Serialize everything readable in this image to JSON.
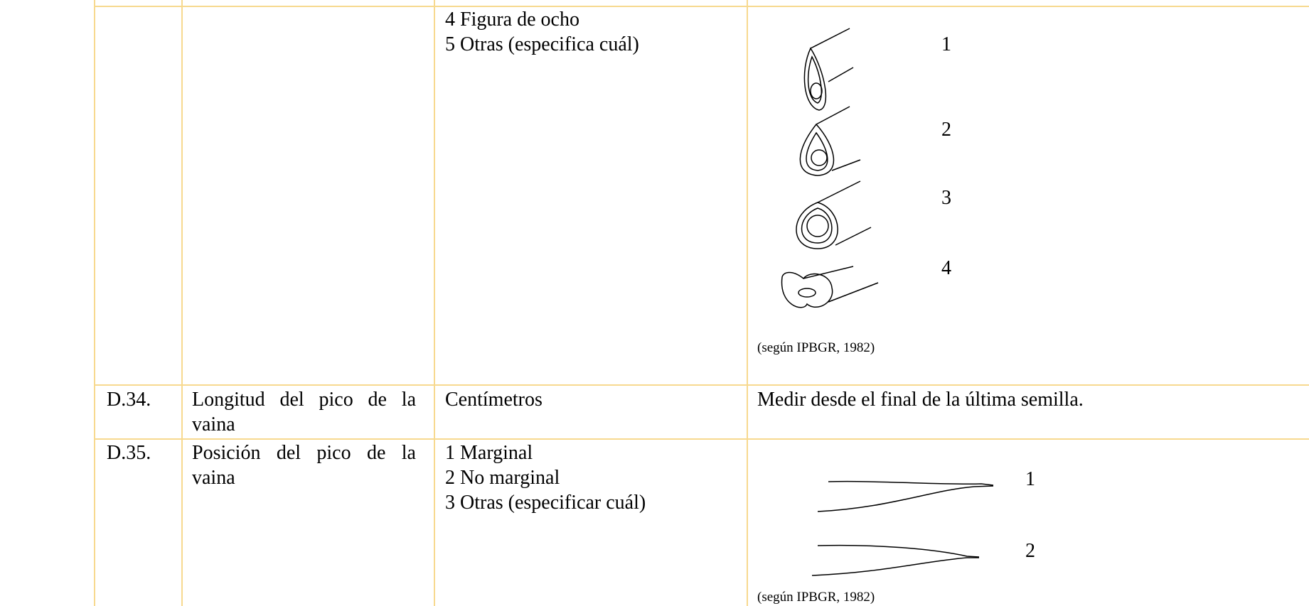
{
  "table": {
    "rows": [
      {
        "states": [
          "4 Figura de ocho",
          "5 Otras (especifica cuál)"
        ],
        "figure": {
          "labels": [
            "1",
            "2",
            "3",
            "4"
          ],
          "source": "(según IPBGR, 1982)"
        }
      },
      {
        "code": "D.34.",
        "characteristic": "Longitud del pico de la vaina",
        "states": [
          "Centímetros"
        ],
        "notes": "Medir desde el final de la última semilla."
      },
      {
        "code": "D.35.",
        "characteristic": "Posición del pico de la vaina",
        "states": [
          "1 Marginal",
          "2 No marginal",
          "3 Otras (especificar cuál)"
        ],
        "figure": {
          "labels": [
            "1",
            "2"
          ],
          "source": "(según IPBGR, 1982)"
        }
      }
    ]
  }
}
